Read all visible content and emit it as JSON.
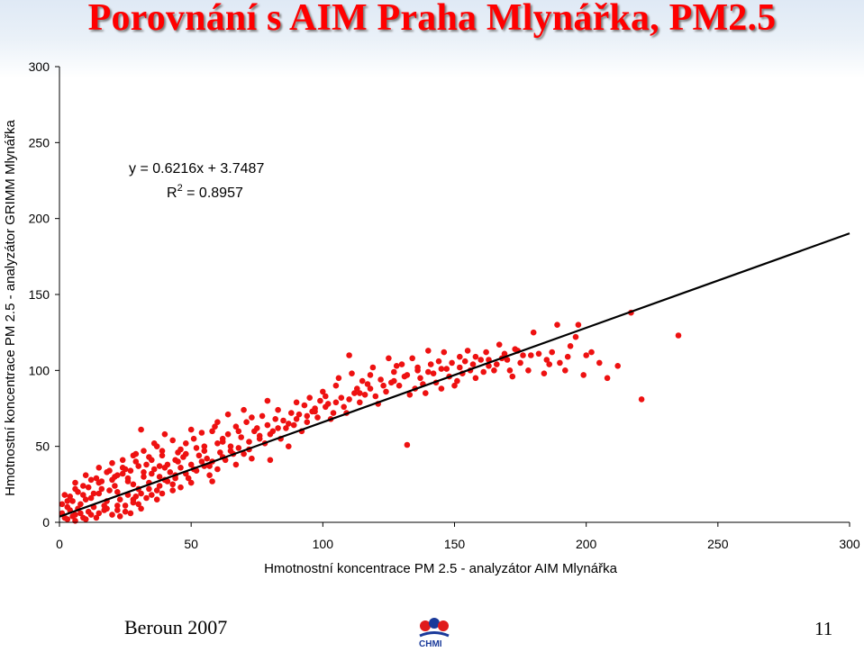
{
  "title": "Porovnání s AIM Praha Mlynářka, PM2.5",
  "footer": {
    "left": "Beroun 2007",
    "page": "11",
    "logo_text": "CHMI"
  },
  "colors": {
    "title": "#ff0000",
    "points": "#ee1111",
    "trendline": "#000000"
  },
  "chart_data": {
    "type": "scatter",
    "xlabel": "Hmotnostní koncentrace PM 2.5 - analyzátor AIM Mlynářka",
    "ylabel": "Hmotnostní koncentrace PM 2.5 - analyzátor GRIMM Mlynářka",
    "xlim": [
      0,
      300
    ],
    "ylim": [
      0,
      300
    ],
    "xticks": [
      0,
      50,
      100,
      150,
      200,
      250,
      300
    ],
    "yticks": [
      0,
      50,
      100,
      150,
      200,
      250,
      300
    ],
    "grid": false,
    "equation": "y = 0.6216x + 3.7487",
    "r2_label": "R",
    "r2_sup": "2",
    "r2_value": " = 0.8957",
    "trendline": {
      "slope": 0.6216,
      "intercept": 3.7487
    },
    "series": [
      {
        "points": [
          [
            235,
            123
          ],
          [
            217,
            138
          ],
          [
            221,
            81
          ],
          [
            189,
            130
          ],
          [
            197,
            130
          ],
          [
            180,
            125
          ],
          [
            205,
            105
          ],
          [
            208,
            95
          ],
          [
            212,
            103
          ],
          [
            199,
            97
          ],
          [
            190,
            105
          ],
          [
            174,
            113
          ],
          [
            170,
            107
          ],
          [
            165,
            100
          ],
          [
            178,
            100
          ],
          [
            184,
            98
          ],
          [
            132,
            51
          ],
          [
            110,
            110
          ],
          [
            140,
            113
          ],
          [
            146,
            112
          ],
          [
            155,
            113
          ],
          [
            160,
            107
          ],
          [
            118,
            97
          ],
          [
            128,
            103
          ],
          [
            136,
            100
          ],
          [
            143,
            92
          ],
          [
            150,
            90
          ],
          [
            105,
            90
          ],
          [
            112,
            85
          ],
          [
            121,
            78
          ],
          [
            135,
            88
          ],
          [
            96,
            73
          ],
          [
            101,
            83
          ],
          [
            88,
            72
          ],
          [
            92,
            60
          ],
          [
            82,
            68
          ],
          [
            75,
            62
          ],
          [
            68,
            60
          ],
          [
            62,
            55
          ],
          [
            31,
            61
          ],
          [
            58,
            60
          ],
          [
            48,
            52
          ],
          [
            56,
            42
          ],
          [
            70,
            45
          ],
          [
            80,
            41
          ],
          [
            60,
            35
          ],
          [
            45,
            40
          ],
          [
            40,
            28
          ],
          [
            35,
            18
          ],
          [
            30,
            12
          ],
          [
            25,
            7
          ],
          [
            20,
            5
          ],
          [
            14,
            3
          ],
          [
            10,
            2
          ],
          [
            6,
            5
          ],
          [
            4,
            8
          ],
          [
            8,
            12
          ],
          [
            12,
            16
          ],
          [
            16,
            22
          ],
          [
            20,
            28
          ],
          [
            24,
            32
          ],
          [
            28,
            25
          ],
          [
            32,
            30
          ],
          [
            36,
            35
          ],
          [
            18,
            14
          ],
          [
            22,
            20
          ],
          [
            26,
            18
          ],
          [
            30,
            22
          ],
          [
            34,
            26
          ],
          [
            38,
            30
          ],
          [
            42,
            33
          ],
          [
            46,
            36
          ],
          [
            50,
            38
          ],
          [
            54,
            40
          ],
          [
            45,
            46
          ],
          [
            39,
            44
          ],
          [
            33,
            38
          ],
          [
            27,
            34
          ],
          [
            21,
            30
          ],
          [
            15,
            26
          ],
          [
            9,
            18
          ],
          [
            5,
            14
          ],
          [
            3,
            10
          ],
          [
            11,
            7
          ],
          [
            17,
            11
          ],
          [
            23,
            15
          ],
          [
            29,
            17
          ],
          [
            37,
            21
          ],
          [
            43,
            25
          ],
          [
            49,
            29
          ],
          [
            52,
            34
          ],
          [
            57,
            37
          ],
          [
            63,
            41
          ],
          [
            66,
            45
          ],
          [
            72,
            48
          ],
          [
            78,
            52
          ],
          [
            84,
            55
          ],
          [
            86,
            62
          ],
          [
            94,
            66
          ],
          [
            98,
            69
          ],
          [
            104,
            72
          ],
          [
            108,
            76
          ],
          [
            114,
            79
          ],
          [
            116,
            84
          ],
          [
            124,
            86
          ],
          [
            126,
            92
          ],
          [
            131,
            96
          ],
          [
            138,
            91
          ],
          [
            141,
            104
          ],
          [
            148,
            96
          ],
          [
            152,
            102
          ],
          [
            158,
            95
          ],
          [
            163,
            103
          ],
          [
            168,
            108
          ],
          [
            172,
            96
          ],
          [
            176,
            110
          ],
          [
            182,
            111
          ],
          [
            186,
            104
          ],
          [
            192,
            100
          ],
          [
            202,
            112
          ],
          [
            196,
            122
          ],
          [
            76,
            57
          ],
          [
            65,
            50
          ],
          [
            55,
            47
          ],
          [
            47,
            43
          ],
          [
            41,
            38
          ],
          [
            61,
            46
          ],
          [
            53,
            44
          ],
          [
            44,
            31
          ],
          [
            35,
            32
          ],
          [
            26,
            27
          ],
          [
            19,
            21
          ],
          [
            13,
            19
          ],
          [
            7,
            9
          ],
          [
            2,
            3
          ],
          [
            1,
            6
          ],
          [
            3,
            14
          ],
          [
            9,
            24
          ],
          [
            14,
            29
          ],
          [
            19,
            34
          ],
          [
            24,
            36
          ],
          [
            29,
            40
          ],
          [
            34,
            43
          ],
          [
            39,
            47
          ],
          [
            51,
            55
          ],
          [
            59,
            63
          ],
          [
            64,
            58
          ],
          [
            71,
            66
          ],
          [
            77,
            70
          ],
          [
            83,
            74
          ],
          [
            90,
            79
          ],
          [
            95,
            82
          ],
          [
            100,
            86
          ],
          [
            106,
            95
          ],
          [
            111,
            98
          ],
          [
            119,
            102
          ],
          [
            125,
            108
          ],
          [
            130,
            104
          ],
          [
            134,
            108
          ],
          [
            144,
            106
          ],
          [
            152,
            109
          ],
          [
            87,
            50
          ],
          [
            73,
            42
          ],
          [
            67,
            38
          ],
          [
            57,
            31
          ],
          [
            50,
            26
          ],
          [
            43,
            21
          ],
          [
            37,
            15
          ],
          [
            31,
            9
          ],
          [
            27,
            6
          ],
          [
            23,
            4
          ],
          [
            40,
            58
          ],
          [
            36,
            52
          ],
          [
            29,
            45
          ],
          [
            24,
            41
          ],
          [
            18,
            33
          ],
          [
            12,
            28
          ],
          [
            6,
            22
          ],
          [
            10,
            15
          ],
          [
            15,
            19
          ],
          [
            21,
            24
          ],
          [
            26,
            29
          ],
          [
            32,
            33
          ],
          [
            38,
            37
          ],
          [
            44,
            41
          ],
          [
            48,
            45
          ],
          [
            55,
            50
          ],
          [
            62,
            53
          ],
          [
            69,
            56
          ],
          [
            74,
            60
          ],
          [
            79,
            64
          ],
          [
            85,
            67
          ],
          [
            91,
            71
          ],
          [
            97,
            75
          ],
          [
            102,
            78
          ],
          [
            107,
            82
          ],
          [
            113,
            88
          ],
          [
            117,
            91
          ],
          [
            122,
            94
          ],
          [
            127,
            99
          ],
          [
            133,
            84
          ],
          [
            137,
            95
          ],
          [
            142,
            98
          ],
          [
            147,
            101
          ],
          [
            153,
            98
          ],
          [
            157,
            104
          ],
          [
            162,
            112
          ],
          [
            167,
            117
          ],
          [
            58,
            27
          ],
          [
            46,
            23
          ],
          [
            39,
            19
          ],
          [
            33,
            16
          ],
          [
            28,
            13
          ],
          [
            22,
            11
          ],
          [
            17,
            8
          ],
          [
            13,
            10
          ],
          [
            8,
            6
          ],
          [
            5,
            4
          ],
          [
            4,
            17
          ],
          [
            7,
            20
          ],
          [
            11,
            23
          ],
          [
            16,
            27
          ],
          [
            22,
            31
          ],
          [
            25,
            35
          ],
          [
            30,
            37
          ],
          [
            35,
            41
          ],
          [
            40,
            36
          ],
          [
            46,
            48
          ],
          [
            52,
            49
          ],
          [
            60,
            52
          ],
          [
            67,
            63
          ],
          [
            73,
            69
          ],
          [
            81,
            60
          ],
          [
            89,
            64
          ],
          [
            93,
            77
          ],
          [
            99,
            80
          ],
          [
            103,
            68
          ],
          [
            109,
            72
          ],
          [
            115,
            93
          ],
          [
            120,
            83
          ],
          [
            129,
            90
          ],
          [
            139,
            85
          ],
          [
            145,
            88
          ],
          [
            151,
            93
          ],
          [
            156,
            100
          ],
          [
            161,
            99
          ],
          [
            166,
            104
          ],
          [
            171,
            100
          ],
          [
            175,
            105
          ],
          [
            185,
            107
          ],
          [
            193,
            109
          ],
          [
            200,
            110
          ],
          [
            64,
            71
          ],
          [
            70,
            74
          ],
          [
            79,
            80
          ],
          [
            60,
            66
          ],
          [
            54,
            59
          ],
          [
            50,
            61
          ],
          [
            43,
            54
          ],
          [
            37,
            50
          ],
          [
            32,
            47
          ],
          [
            28,
            44
          ],
          [
            20,
            39
          ],
          [
            15,
            36
          ],
          [
            10,
            31
          ],
          [
            6,
            26
          ],
          [
            2,
            18
          ],
          [
            1,
            12
          ],
          [
            3,
            2
          ],
          [
            6,
            1
          ],
          [
            9,
            3
          ],
          [
            12,
            5
          ],
          [
            15,
            6
          ],
          [
            18,
            9
          ],
          [
            22,
            8
          ],
          [
            25,
            11
          ],
          [
            28,
            15
          ],
          [
            31,
            19
          ],
          [
            34,
            22
          ],
          [
            38,
            24
          ],
          [
            41,
            27
          ],
          [
            44,
            29
          ],
          [
            48,
            32
          ],
          [
            51,
            35
          ],
          [
            55,
            37
          ],
          [
            58,
            40
          ],
          [
            62,
            43
          ],
          [
            65,
            47
          ],
          [
            68,
            49
          ],
          [
            72,
            53
          ],
          [
            76,
            55
          ],
          [
            80,
            58
          ],
          [
            83,
            62
          ],
          [
            87,
            65
          ],
          [
            90,
            68
          ],
          [
            94,
            70
          ],
          [
            97,
            73
          ],
          [
            101,
            76
          ],
          [
            105,
            79
          ],
          [
            110,
            81
          ],
          [
            114,
            85
          ],
          [
            118,
            88
          ],
          [
            123,
            90
          ],
          [
            127,
            93
          ],
          [
            132,
            97
          ],
          [
            136,
            102
          ],
          [
            140,
            99
          ],
          [
            145,
            101
          ],
          [
            149,
            105
          ],
          [
            154,
            106
          ],
          [
            158,
            109
          ],
          [
            163,
            107
          ],
          [
            169,
            111
          ],
          [
            173,
            114
          ],
          [
            179,
            110
          ],
          [
            187,
            112
          ],
          [
            194,
            116
          ]
        ]
      }
    ]
  }
}
